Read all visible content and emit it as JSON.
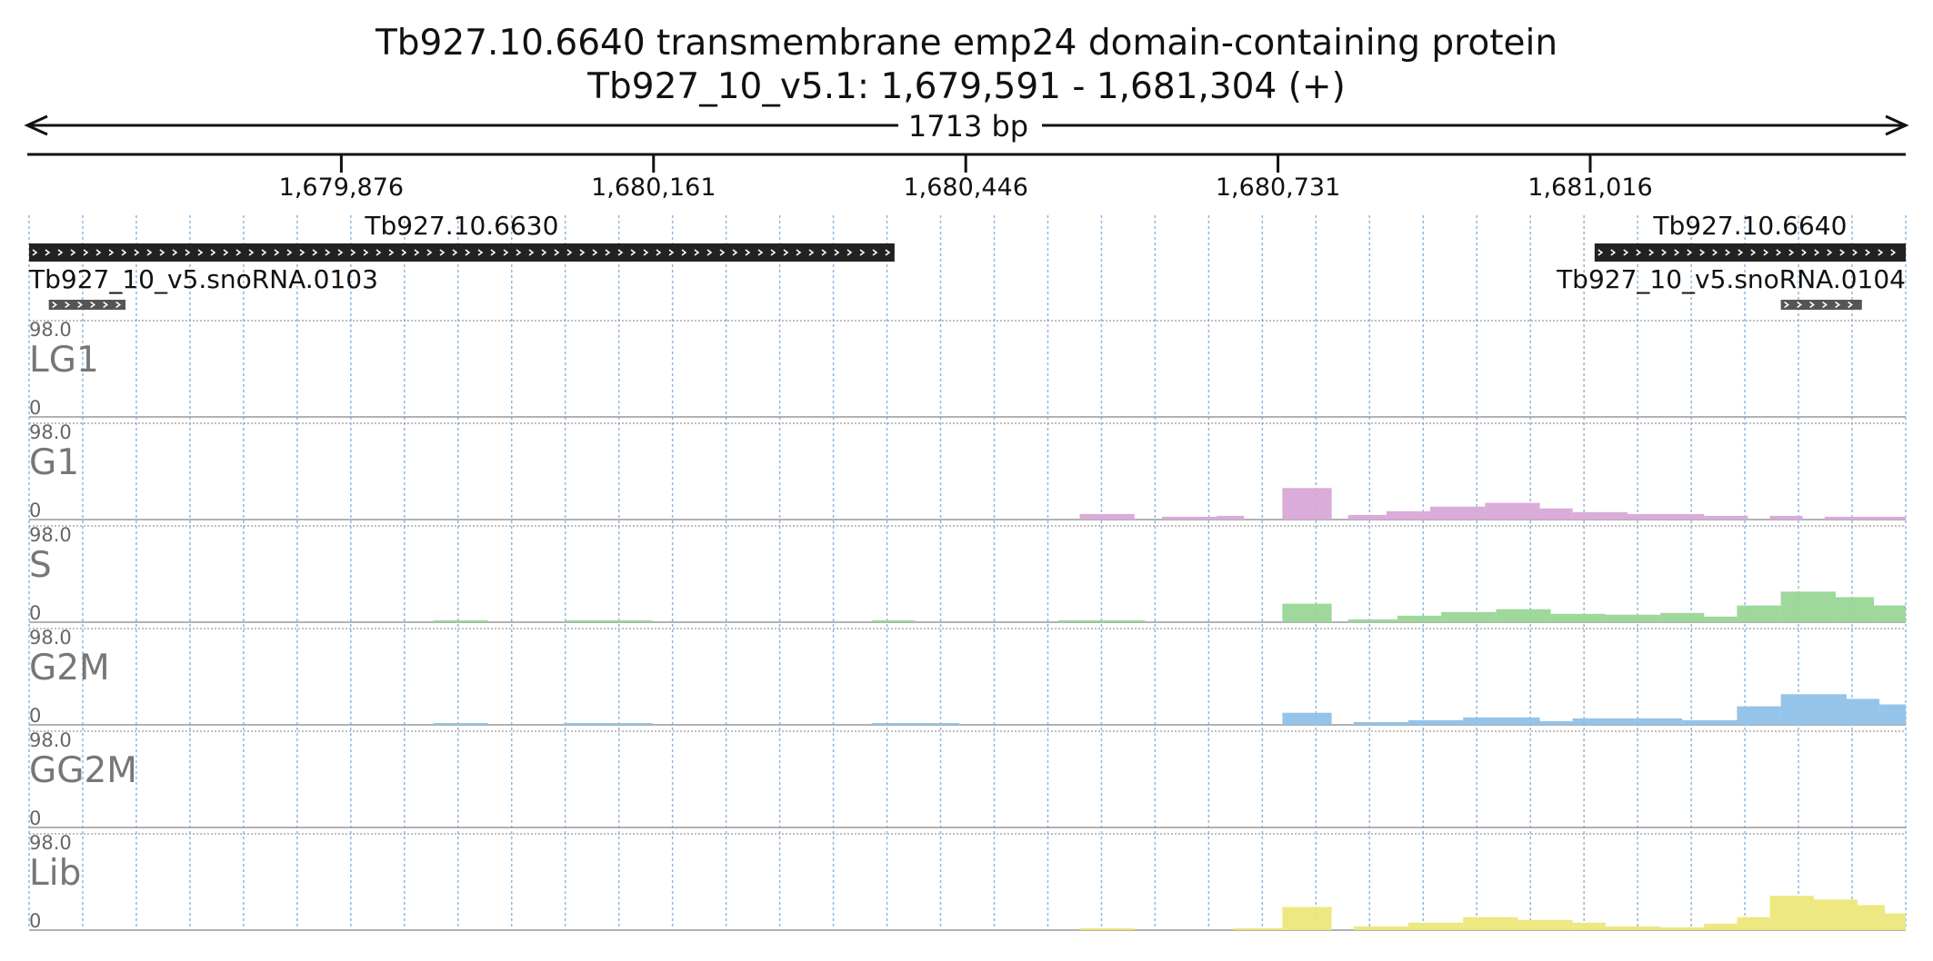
{
  "header": {
    "title_line1": "Tb927.10.6640  transmembrane emp24 domain-containing protein",
    "title_line2": "Tb927_10_v5.1: 1,679,591 - 1,681,304 (+)",
    "length_label": "1713 bp"
  },
  "colors": {
    "grid": "#8fb8de",
    "feature": "#222222",
    "snorna": "#555555",
    "axis": "#111111"
  },
  "chart_data": {
    "type": "area",
    "region": {
      "chrom": "Tb927_10_v5.1",
      "start": 1679591,
      "end": 1681304,
      "strand": "+"
    },
    "ticks": [
      {
        "pos": 1679876,
        "label": "1,679,876"
      },
      {
        "pos": 1680161,
        "label": "1,680,161"
      },
      {
        "pos": 1680446,
        "label": "1,680,446"
      },
      {
        "pos": 1680731,
        "label": "1,680,731"
      },
      {
        "pos": 1681016,
        "label": "1,681,016"
      }
    ],
    "features": [
      {
        "name": "Tb927.10.6630",
        "start": 1679591,
        "end": 1680381,
        "kind": "gene"
      },
      {
        "name": "Tb927.10.6640",
        "start": 1681020,
        "end": 1681304,
        "kind": "gene"
      },
      {
        "name": "Tb927_10_v5.snoRNA.0103",
        "start": 1679609,
        "end": 1679679,
        "kind": "snoRNA"
      },
      {
        "name": "Tb927_10_v5.snoRNA.0104",
        "start": 1681190,
        "end": 1681264,
        "kind": "snoRNA"
      }
    ],
    "tracks": [
      {
        "name": "LG1",
        "max": "98.0",
        "min": "0",
        "color": "#ffffff",
        "segments": []
      },
      {
        "name": "G1",
        "max": "98.0",
        "min": "0",
        "color": "#d7a8d7",
        "segments": [
          {
            "start": 1680550,
            "end": 1680600,
            "value": 6
          },
          {
            "start": 1680625,
            "end": 1680675,
            "value": 3
          },
          {
            "start": 1680675,
            "end": 1680700,
            "value": 4
          },
          {
            "start": 1680735,
            "end": 1680780,
            "value": 34
          },
          {
            "start": 1680795,
            "end": 1680830,
            "value": 5
          },
          {
            "start": 1680830,
            "end": 1680870,
            "value": 9
          },
          {
            "start": 1680870,
            "end": 1680920,
            "value": 14
          },
          {
            "start": 1680920,
            "end": 1680970,
            "value": 18
          },
          {
            "start": 1680970,
            "end": 1681000,
            "value": 12
          },
          {
            "start": 1681000,
            "end": 1681050,
            "value": 8
          },
          {
            "start": 1681050,
            "end": 1681120,
            "value": 6
          },
          {
            "start": 1681120,
            "end": 1681160,
            "value": 4
          },
          {
            "start": 1681180,
            "end": 1681210,
            "value": 4
          },
          {
            "start": 1681230,
            "end": 1681304,
            "value": 3
          }
        ]
      },
      {
        "name": "S",
        "max": "98.0",
        "min": "0",
        "color": "#99d696",
        "segments": [
          {
            "start": 1679960,
            "end": 1680010,
            "value": 1
          },
          {
            "start": 1680080,
            "end": 1680160,
            "value": 1
          },
          {
            "start": 1680360,
            "end": 1680400,
            "value": 1
          },
          {
            "start": 1680530,
            "end": 1680610,
            "value": 1
          },
          {
            "start": 1680735,
            "end": 1680780,
            "value": 20
          },
          {
            "start": 1680795,
            "end": 1680840,
            "value": 3
          },
          {
            "start": 1680840,
            "end": 1680880,
            "value": 7
          },
          {
            "start": 1680880,
            "end": 1680930,
            "value": 11
          },
          {
            "start": 1680930,
            "end": 1680980,
            "value": 14
          },
          {
            "start": 1680980,
            "end": 1681030,
            "value": 9
          },
          {
            "start": 1681030,
            "end": 1681080,
            "value": 8
          },
          {
            "start": 1681080,
            "end": 1681120,
            "value": 10
          },
          {
            "start": 1681120,
            "end": 1681150,
            "value": 6
          },
          {
            "start": 1681150,
            "end": 1681190,
            "value": 18
          },
          {
            "start": 1681190,
            "end": 1681240,
            "value": 33
          },
          {
            "start": 1681240,
            "end": 1681275,
            "value": 27
          },
          {
            "start": 1681275,
            "end": 1681304,
            "value": 18
          }
        ]
      },
      {
        "name": "G2M",
        "max": "98.0",
        "min": "0",
        "color": "#8ec1e8",
        "segments": [
          {
            "start": 1679960,
            "end": 1680010,
            "value": 1
          },
          {
            "start": 1680080,
            "end": 1680160,
            "value": 1
          },
          {
            "start": 1680360,
            "end": 1680440,
            "value": 1
          },
          {
            "start": 1680735,
            "end": 1680780,
            "value": 13
          },
          {
            "start": 1680800,
            "end": 1680850,
            "value": 3
          },
          {
            "start": 1680850,
            "end": 1680900,
            "value": 5
          },
          {
            "start": 1680900,
            "end": 1680970,
            "value": 8
          },
          {
            "start": 1680970,
            "end": 1681000,
            "value": 4
          },
          {
            "start": 1681000,
            "end": 1681100,
            "value": 7
          },
          {
            "start": 1681100,
            "end": 1681150,
            "value": 5
          },
          {
            "start": 1681150,
            "end": 1681190,
            "value": 20
          },
          {
            "start": 1681190,
            "end": 1681250,
            "value": 33
          },
          {
            "start": 1681250,
            "end": 1681280,
            "value": 28
          },
          {
            "start": 1681280,
            "end": 1681304,
            "value": 22
          }
        ]
      },
      {
        "name": "GG2M",
        "max": "98.0",
        "min": "0",
        "color": "#ffffff",
        "segments": []
      },
      {
        "name": "Lib",
        "max": "98.0",
        "min": "0",
        "color": "#ece77a",
        "segments": [
          {
            "start": 1680550,
            "end": 1680600,
            "value": 1
          },
          {
            "start": 1680690,
            "end": 1680735,
            "value": 2
          },
          {
            "start": 1680735,
            "end": 1680780,
            "value": 25
          },
          {
            "start": 1680800,
            "end": 1680850,
            "value": 4
          },
          {
            "start": 1680850,
            "end": 1680900,
            "value": 8
          },
          {
            "start": 1680900,
            "end": 1680950,
            "value": 14
          },
          {
            "start": 1680950,
            "end": 1681000,
            "value": 11
          },
          {
            "start": 1681000,
            "end": 1681030,
            "value": 8
          },
          {
            "start": 1681030,
            "end": 1681080,
            "value": 4
          },
          {
            "start": 1681080,
            "end": 1681120,
            "value": 3
          },
          {
            "start": 1681120,
            "end": 1681150,
            "value": 7
          },
          {
            "start": 1681150,
            "end": 1681180,
            "value": 14
          },
          {
            "start": 1681180,
            "end": 1681220,
            "value": 37
          },
          {
            "start": 1681220,
            "end": 1681260,
            "value": 33
          },
          {
            "start": 1681260,
            "end": 1681285,
            "value": 27
          },
          {
            "start": 1681285,
            "end": 1681304,
            "value": 18
          }
        ]
      }
    ]
  }
}
